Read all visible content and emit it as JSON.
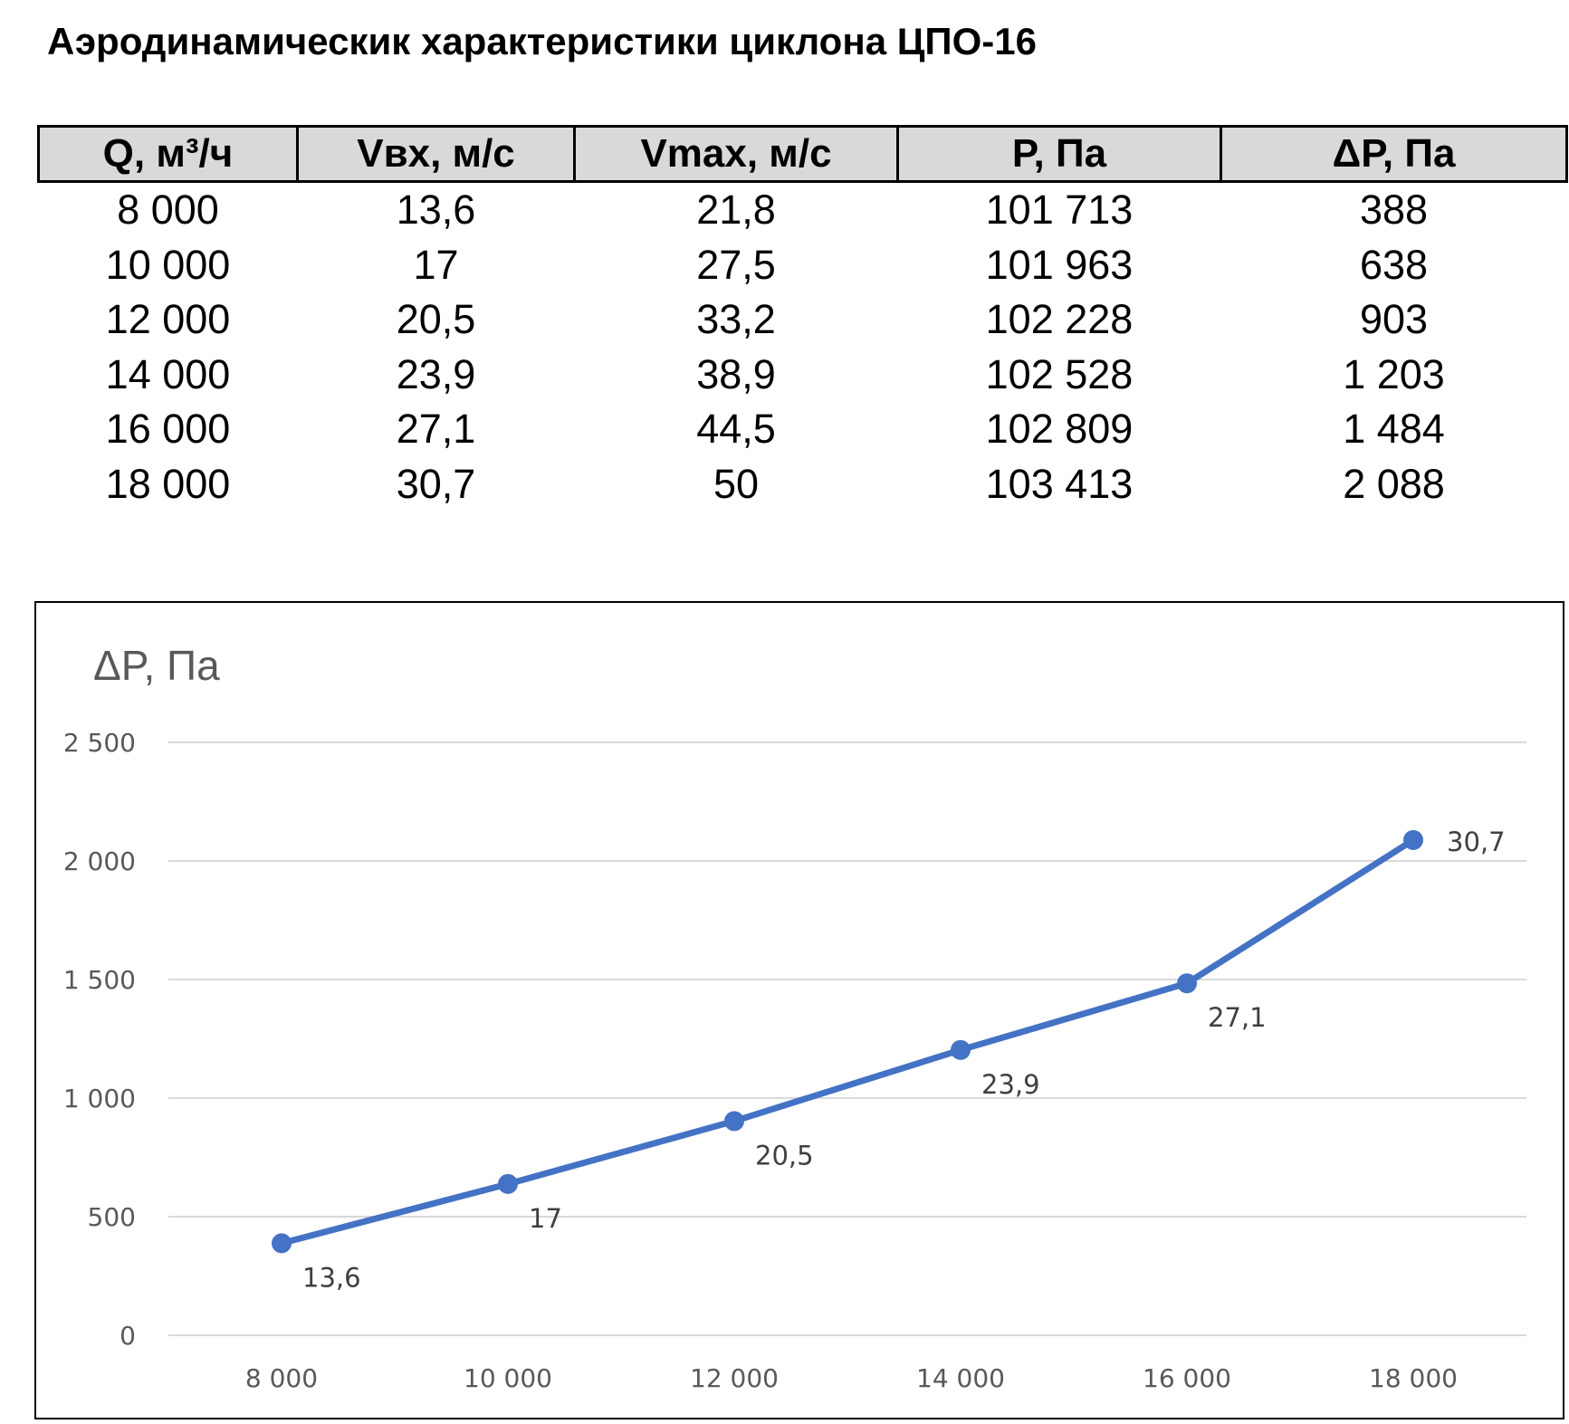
{
  "title": "Аэродинамическик характеристики циклона ЦПО-16",
  "table": {
    "headers": [
      "Q, м³/ч",
      "Vвх, м/с",
      "Vmax, м/с",
      "P, Па",
      "ΔP, Па"
    ],
    "rows": [
      [
        "8 000",
        "13,6",
        "21,8",
        "101 713",
        "388"
      ],
      [
        "10 000",
        "17",
        "27,5",
        "101 963",
        "638"
      ],
      [
        "12 000",
        "20,5",
        "33,2",
        "102 228",
        "903"
      ],
      [
        "14 000",
        "23,9",
        "38,9",
        "102 528",
        "1 203"
      ],
      [
        "16 000",
        "27,1",
        "44,5",
        "102 809",
        "1 484"
      ],
      [
        "18 000",
        "30,7",
        "50",
        "103 413",
        "2 088"
      ]
    ]
  },
  "chart_data": {
    "type": "line",
    "title": "",
    "ylabel": "ΔP, Па",
    "xlabel": "",
    "categories": [
      "8 000",
      "10 000",
      "12 000",
      "14 000",
      "16 000",
      "18 000"
    ],
    "series": [
      {
        "values": [
          388,
          638,
          903,
          1203,
          1484,
          2088
        ],
        "data_labels": [
          "13,6",
          "17",
          "20,5",
          "23,9",
          "27,1",
          "30,7"
        ],
        "color": "#4472c4"
      }
    ],
    "ylim": [
      0,
      2500
    ],
    "yticks": [
      0,
      500,
      1000,
      1500,
      2000,
      2500
    ],
    "ytick_labels": [
      "0",
      "500",
      "1 000",
      "1 500",
      "2 000",
      "2 500"
    ],
    "grid": true,
    "legend": "none"
  },
  "colors": {
    "line": "#4472c4",
    "grid": "#d9d9d9",
    "header_bg": "#d9d9d9",
    "axis_text": "#595959"
  }
}
